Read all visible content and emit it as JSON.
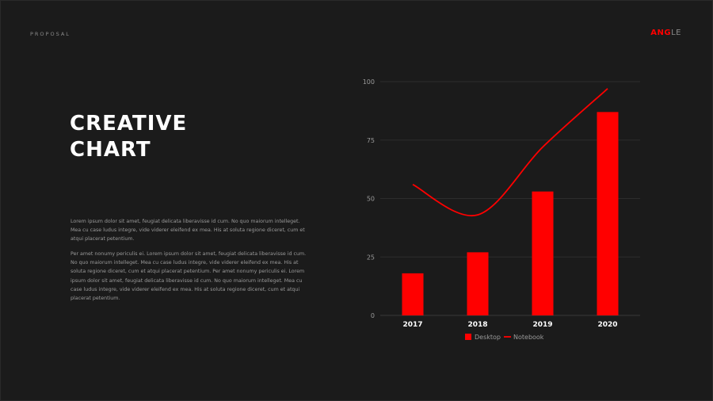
{
  "header": {
    "section_label": "PROPOSAL",
    "logo_bold": "ANG",
    "logo_rest": "LE"
  },
  "main": {
    "title_line1": "CREATIVE",
    "title_line2": "CHART",
    "paragraph1": "Lorem ipsum dolor sit amet, feugiat delicata liberavisse id cum. No quo maiorum intelleget. Mea cu case ludus integre, vide viderer eleifend ex mea. His at soluta regione diceret, cum et atqui placerat petentium.",
    "paragraph2": "Per amet nonumy periculis ei. Lorem ipsum dolor sit amet, feugiat delicata liberavisse id cum. No quo maiorum intelleget. Mea cu case ludus integre, vide viderer eleifend ex mea. His at soluta regione diceret, cum et atqui placerat petentium. Per amet nonumy periculis ei. Lorem ipsum dolor sit amet, feugiat delicata liberavisse id cum. No quo maiorum intelleget. Mea cu case ludus integre, vide viderer eleifend ex mea. His at soluta regione diceret, cum et atqui placerat petentium."
  },
  "colors": {
    "accent": "#ff0000",
    "background": "#1b1b1b",
    "grid": "#2c2c2c"
  },
  "chart_data": {
    "type": "bar",
    "categories": [
      "2017",
      "2018",
      "2019",
      "2020"
    ],
    "series": [
      {
        "name": "Desktop",
        "type": "bar",
        "values": [
          18,
          27,
          53,
          87
        ]
      },
      {
        "name": "Notebook",
        "type": "line",
        "values": [
          56,
          43,
          72,
          97
        ]
      }
    ],
    "ylim": [
      0,
      100
    ],
    "yticks": [
      0,
      25,
      50,
      75,
      100
    ],
    "grid": true,
    "legend": "bottom",
    "title": "",
    "xlabel": "",
    "ylabel": ""
  }
}
